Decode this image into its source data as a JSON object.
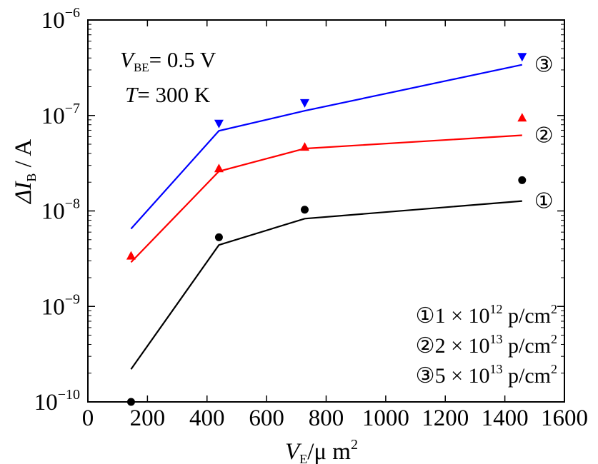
{
  "chart_data": {
    "type": "scatter",
    "y_scale": "log",
    "xlim": [
      0,
      1600
    ],
    "ylim": [
      1e-10,
      1e-06
    ],
    "grid": false,
    "xlabel": {
      "main": "V",
      "sub": "E",
      "rest": "/μ m",
      "sup": "2"
    },
    "ylabel": {
      "prefix": "ΔI",
      "sub": "B",
      "rest": " / A"
    },
    "x_ticks": [
      "0",
      "200",
      "400",
      "600",
      "800",
      "1000",
      "1200",
      "1400",
      "1600"
    ],
    "y_ticks": [
      {
        "base": "10",
        "exp": "−10"
      },
      {
        "base": "10",
        "exp": "−9"
      },
      {
        "base": "10",
        "exp": "−8"
      },
      {
        "base": "10",
        "exp": "−7"
      },
      {
        "base": "10",
        "exp": "−6"
      }
    ],
    "annotations": {
      "vbe": {
        "var": "V",
        "sub": "BE",
        "text": "= 0.5 V"
      },
      "temp": {
        "var": "T",
        "text": "= 300 K"
      }
    },
    "legend_entries": [
      {
        "marker": "①",
        "coef": "1 × 10",
        "exp": "12",
        "unit": " p/cm",
        "unit_exp": "2"
      },
      {
        "marker": "②",
        "coef": "2 × 10",
        "exp": "13",
        "unit": " p/cm",
        "unit_exp": "2"
      },
      {
        "marker": "③",
        "coef": "5 × 10",
        "exp": "13",
        "unit": " p/cm",
        "unit_exp": "2"
      }
    ],
    "series": [
      {
        "label": "①",
        "color": "#000000",
        "marker": "circle",
        "points": {
          "x": [
            145,
            440,
            728,
            1458
          ],
          "y": [
            1e-10,
            5.3e-09,
            1.03e-08,
            2.1e-08
          ]
        },
        "line": {
          "x": [
            145,
            440,
            728,
            1458
          ],
          "y": [
            2.2e-10,
            4.4e-09,
            8.3e-09,
            1.27e-08
          ]
        }
      },
      {
        "label": "②",
        "color": "#ff0000",
        "marker": "triangle-up",
        "points": {
          "x": [
            145,
            440,
            728,
            1458
          ],
          "y": [
            3.4e-09,
            2.8e-08,
            4.7e-08,
            9.5e-08
          ]
        },
        "line": {
          "x": [
            145,
            440,
            728,
            1458
          ],
          "y": [
            2.9e-09,
            2.6e-08,
            4.5e-08,
            6.2e-08
          ]
        }
      },
      {
        "label": "③",
        "color": "#0000ff",
        "marker": "triangle-down",
        "points": {
          "x": [
            440,
            728,
            1458
          ],
          "y": [
            8.2e-08,
            1.35e-07,
            4.1e-07
          ]
        },
        "line": {
          "x": [
            145,
            440,
            728,
            1458
          ],
          "y": [
            6.5e-09,
            6.9e-08,
            1.12e-07,
            3.4e-07
          ]
        }
      }
    ]
  }
}
